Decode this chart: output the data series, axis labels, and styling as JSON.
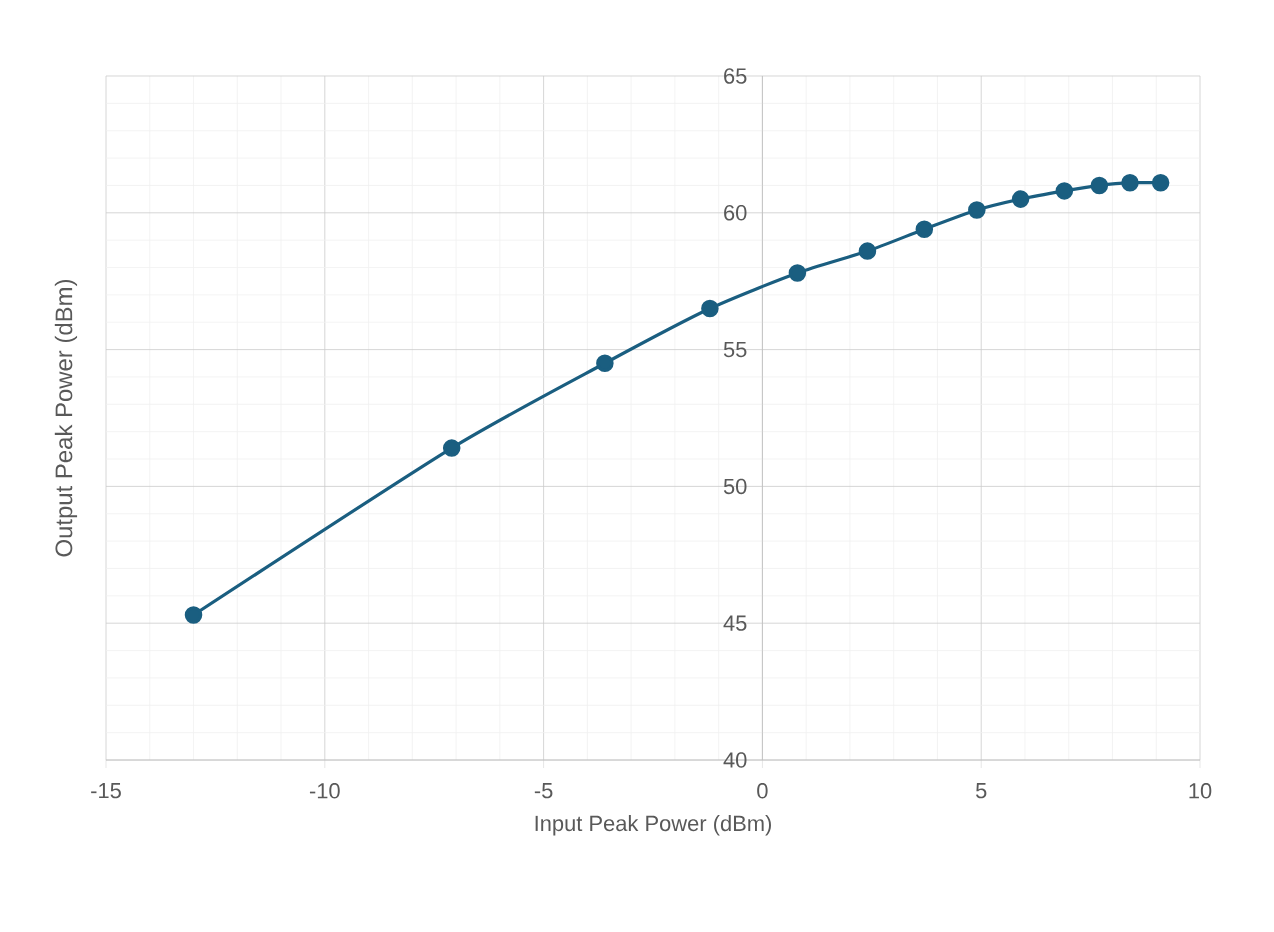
{
  "chart_data": {
    "type": "line",
    "xlabel": "Input Peak  Power (dBm)",
    "ylabel": "Output Peak  Power (dBm)",
    "x": [
      -13.0,
      -7.1,
      -3.6,
      -1.2,
      0.8,
      2.4,
      3.7,
      4.9,
      5.9,
      6.9,
      7.7,
      8.4,
      9.1
    ],
    "values": [
      45.3,
      51.4,
      54.5,
      56.5,
      57.8,
      58.6,
      59.4,
      60.1,
      60.5,
      60.8,
      61.0,
      61.1,
      61.1
    ],
    "color": "#1a5e80",
    "marker": "circle",
    "line_style": "solid",
    "grid": true,
    "xlim": [
      -15,
      10
    ],
    "ylim": [
      40,
      65
    ],
    "xticks": [
      -15,
      -10,
      -5,
      0,
      5,
      10
    ],
    "yticks": [
      40,
      45,
      50,
      55,
      60,
      65
    ]
  }
}
